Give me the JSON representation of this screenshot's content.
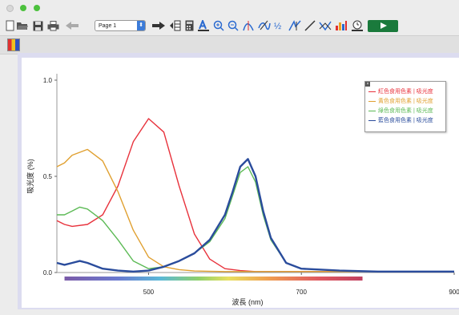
{
  "toolbar": {
    "page_select": "Page 1",
    "page_arrow": "⬍"
  },
  "colors": {
    "red": "#e8323c",
    "orange": "#e0a030",
    "green": "#5cba55",
    "blue": "#2a4c9c"
  },
  "chart_data": {
    "type": "line",
    "xlabel": "波長 (nm)",
    "ylabel": "吸光度 (%)",
    "xlim": [
      380,
      900
    ],
    "ylim": [
      0,
      1.0
    ],
    "x_ticks": [
      500,
      700,
      900
    ],
    "y_ticks": [
      0.0,
      0.5,
      1.0
    ],
    "x_tick_labels": [
      "500",
      "700",
      "900"
    ],
    "y_tick_labels": [
      "0.0",
      "0.5",
      "1.0"
    ],
    "legend": "top-right",
    "series": [
      {
        "name": "紅色食用色素 | 吸光度",
        "color": "#e8323c",
        "x": [
          380,
          390,
          400,
          420,
          440,
          460,
          480,
          500,
          520,
          540,
          560,
          580,
          600,
          620,
          640,
          660,
          680,
          700,
          900
        ],
        "y": [
          0.27,
          0.25,
          0.24,
          0.25,
          0.3,
          0.45,
          0.68,
          0.8,
          0.73,
          0.45,
          0.2,
          0.07,
          0.02,
          0.01,
          0.005,
          0.005,
          0.005,
          0.005,
          0.005
        ]
      },
      {
        "name": "黃色食用色素 | 吸光度",
        "color": "#e0a030",
        "x": [
          380,
          390,
          400,
          420,
          440,
          460,
          480,
          500,
          520,
          540,
          560,
          600,
          700,
          900
        ],
        "y": [
          0.55,
          0.57,
          0.61,
          0.64,
          0.58,
          0.42,
          0.22,
          0.08,
          0.03,
          0.015,
          0.008,
          0.005,
          0.005,
          0.005
        ]
      },
      {
        "name": "綠色食用色素 | 吸光度",
        "color": "#5cba55",
        "x": [
          380,
          390,
          400,
          410,
          420,
          440,
          460,
          480,
          500,
          520,
          540,
          560,
          580,
          600,
          610,
          620,
          630,
          640,
          650,
          660,
          680,
          700,
          750,
          800,
          900
        ],
        "y": [
          0.3,
          0.3,
          0.32,
          0.34,
          0.33,
          0.27,
          0.17,
          0.06,
          0.02,
          0.03,
          0.06,
          0.1,
          0.16,
          0.28,
          0.4,
          0.52,
          0.55,
          0.47,
          0.3,
          0.17,
          0.05,
          0.02,
          0.01,
          0.005,
          0.005
        ]
      },
      {
        "name": "藍色食用色素 | 吸光度",
        "color": "#2a4c9c",
        "x": [
          380,
          390,
          400,
          410,
          420,
          440,
          460,
          480,
          500,
          520,
          540,
          560,
          580,
          600,
          610,
          620,
          630,
          640,
          650,
          660,
          680,
          700,
          750,
          800,
          900
        ],
        "y": [
          0.05,
          0.04,
          0.05,
          0.06,
          0.05,
          0.02,
          0.01,
          0.005,
          0.01,
          0.03,
          0.06,
          0.1,
          0.17,
          0.3,
          0.42,
          0.55,
          0.59,
          0.5,
          0.32,
          0.18,
          0.05,
          0.02,
          0.01,
          0.005,
          0.005
        ]
      }
    ]
  }
}
